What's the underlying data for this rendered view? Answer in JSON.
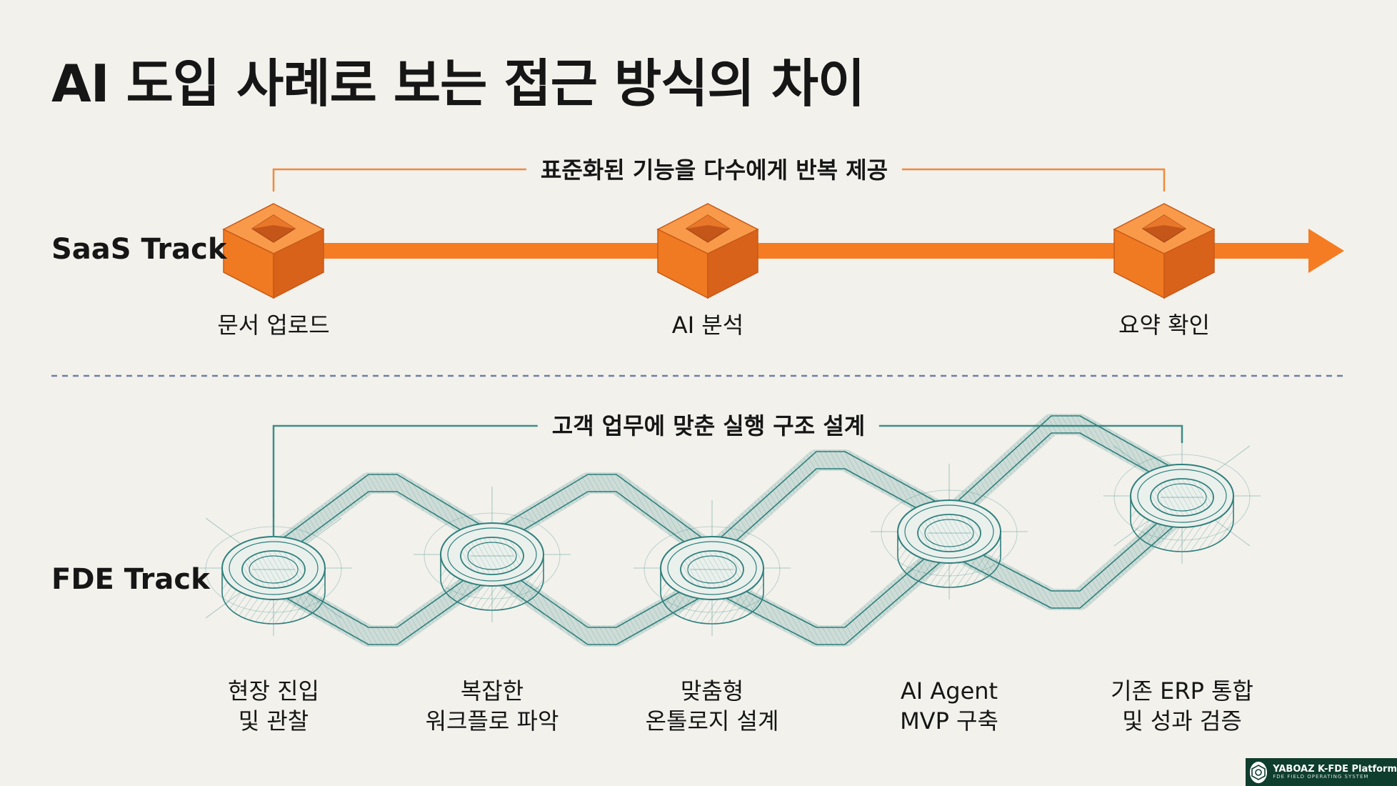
{
  "title": "AI 도입 사례로 보는 접근 방식의 차이",
  "saas": {
    "label": "SaaS Track",
    "bracket": "표준화된 기능을 다수에게 반복 제공",
    "steps": [
      "문서 업로드",
      "AI 분석",
      "요약 확인"
    ]
  },
  "fde": {
    "label": "FDE Track",
    "bracket": "고객 업무에 맞춘 실행 구조 설계",
    "steps": [
      {
        "line1": "현장 진입",
        "line2": "및 관찰"
      },
      {
        "line1": "복잡한",
        "line2": "워크플로 파악"
      },
      {
        "line1": "맞춤형",
        "line2": "온톨로지 설계"
      },
      {
        "line1": "AI Agent",
        "line2": "MVP 구축"
      },
      {
        "line1": "기존 ERP 통합",
        "line2": "및 성과 검증"
      }
    ]
  },
  "watermark": {
    "name": "YABOAZ K-FDE Platform",
    "sub": "FDE FIELD OPERATING SYSTEM"
  },
  "colors": {
    "saas_orange": "#f57c22",
    "saas_orange_dark": "#d9621a",
    "fde_teal": "#2f7f7c",
    "bracket_teal": "#3f8d88",
    "background": "#f2f1ec",
    "divider": "#6f7fa0"
  },
  "icons": {
    "saas_node": "orange-cube-icon",
    "fde_node": "ring-hub-icon",
    "watermark_logo": "yaboaz-logo-icon"
  }
}
